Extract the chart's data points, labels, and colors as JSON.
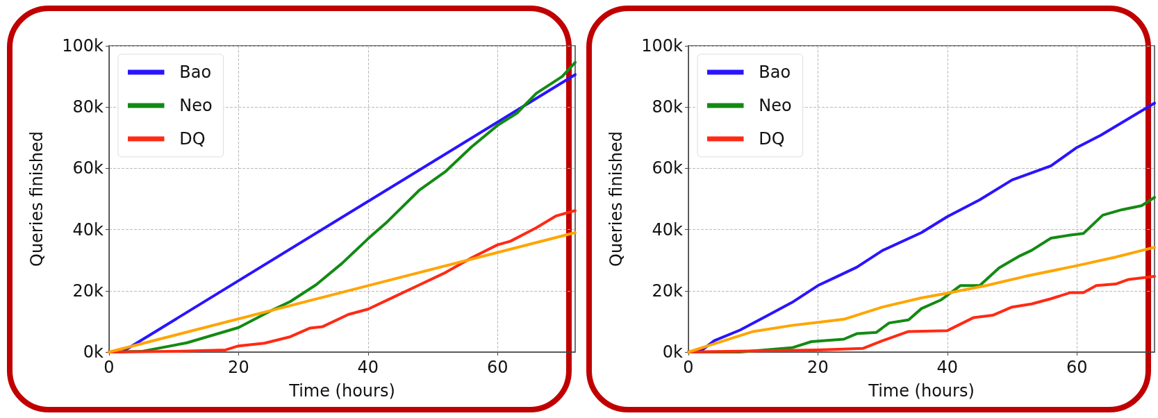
{
  "chart_data": [
    {
      "type": "line",
      "xlabel": "Time (hours)",
      "ylabel": "Queries finished",
      "xlim": [
        0,
        72
      ],
      "xticks": [
        0,
        20,
        40,
        60
      ],
      "ylim": [
        0,
        100
      ],
      "yticks": [
        {
          "value": 0,
          "label": "0k"
        },
        {
          "value": 20,
          "label": "20k"
        },
        {
          "value": 40,
          "label": "40k"
        },
        {
          "value": 60,
          "label": "60k"
        },
        {
          "value": 80,
          "label": "80k"
        },
        {
          "value": 100,
          "label": "100k"
        }
      ],
      "grid": true,
      "legend": "top left",
      "marker": "none",
      "line_style": "solid",
      "series": [
        {
          "name": "Bao",
          "color": "#2a14ff",
          "x": [
            0,
            2,
            72
          ],
          "values": [
            0,
            0,
            90.6
          ]
        },
        {
          "name": "Neo",
          "color": "#138a13",
          "x": [
            0,
            5,
            12,
            20,
            25,
            28,
            32,
            36,
            40,
            43,
            48,
            52,
            56,
            60,
            63,
            66,
            70,
            72
          ],
          "values": [
            0,
            0.2,
            3,
            8,
            13.5,
            16.5,
            22,
            29,
            37,
            42.6,
            53,
            59,
            67,
            74,
            78,
            84.5,
            90,
            94.6
          ]
        },
        {
          "name": "DQ",
          "color": "#ff2a14",
          "x": [
            0,
            10,
            18,
            20,
            24,
            28,
            31,
            33,
            37,
            40,
            44,
            48,
            52,
            56,
            60,
            62,
            66,
            69,
            72
          ],
          "values": [
            0,
            0.2,
            0.7,
            2,
            2.9,
            5,
            7.8,
            8.3,
            12.3,
            14,
            18,
            22,
            26,
            30.8,
            35,
            36.2,
            40.6,
            44.4,
            46.2
          ]
        },
        {
          "color": "#ffa500",
          "x": [
            0,
            72
          ],
          "values": [
            0,
            39
          ]
        }
      ]
    },
    {
      "type": "line",
      "xlabel": "Time (hours)",
      "ylabel": "Queries finished",
      "xlim": [
        0,
        72
      ],
      "xticks": [
        0,
        20,
        40,
        60
      ],
      "ylim": [
        0,
        100
      ],
      "yticks": [
        {
          "value": 0,
          "label": "0k"
        },
        {
          "value": 20,
          "label": "20k"
        },
        {
          "value": 40,
          "label": "40k"
        },
        {
          "value": 60,
          "label": "60k"
        },
        {
          "value": 80,
          "label": "80k"
        },
        {
          "value": 100,
          "label": "100k"
        }
      ],
      "grid": true,
      "legend": "top left",
      "marker": "none",
      "line_style": "solid",
      "series": [
        {
          "name": "Bao",
          "color": "#2a14ff",
          "x": [
            0,
            2,
            4,
            8,
            12,
            16,
            20,
            23,
            26,
            30,
            36,
            40,
            45,
            50,
            56,
            60,
            63.7,
            72
          ],
          "values": [
            0,
            0.5,
            3.7,
            7.2,
            11.7,
            16.2,
            21.7,
            24.7,
            27.7,
            33.2,
            39,
            44.2,
            49.7,
            56.2,
            60.8,
            66.8,
            70.8,
            81.3
          ]
        },
        {
          "name": "Neo",
          "color": "#138a13",
          "x": [
            0,
            8,
            16,
            19,
            24,
            26,
            29,
            31,
            34,
            36,
            39,
            42,
            45,
            48,
            51,
            53,
            56,
            59,
            61,
            64,
            67,
            70,
            72
          ],
          "values": [
            0,
            0,
            1.4,
            3.4,
            4.2,
            6,
            6.4,
            9.5,
            10.5,
            14.2,
            17,
            21.7,
            21.7,
            27.5,
            31.2,
            33.2,
            37.2,
            38.2,
            38.7,
            44.7,
            46.5,
            47.8,
            50.5
          ]
        },
        {
          "name": "DQ",
          "color": "#ff2a14",
          "x": [
            0,
            20,
            27,
            30,
            34,
            40,
            44,
            47,
            50,
            53,
            56,
            59,
            61,
            63,
            66,
            68,
            72
          ],
          "values": [
            0,
            0.7,
            1.2,
            3.7,
            6.7,
            7,
            11.2,
            12,
            14.7,
            15.7,
            17.4,
            19.4,
            19.4,
            21.7,
            22.2,
            23.7,
            24.7
          ]
        },
        {
          "color": "#ffa500",
          "x": [
            0,
            4,
            10,
            16,
            20,
            24,
            30,
            36,
            40,
            46,
            52,
            60,
            66,
            72
          ],
          "values": [
            0,
            2.7,
            6.7,
            8.7,
            9.7,
            10.7,
            14.7,
            17.7,
            19.2,
            21.7,
            24.7,
            28.2,
            31,
            34.2
          ]
        }
      ]
    }
  ]
}
